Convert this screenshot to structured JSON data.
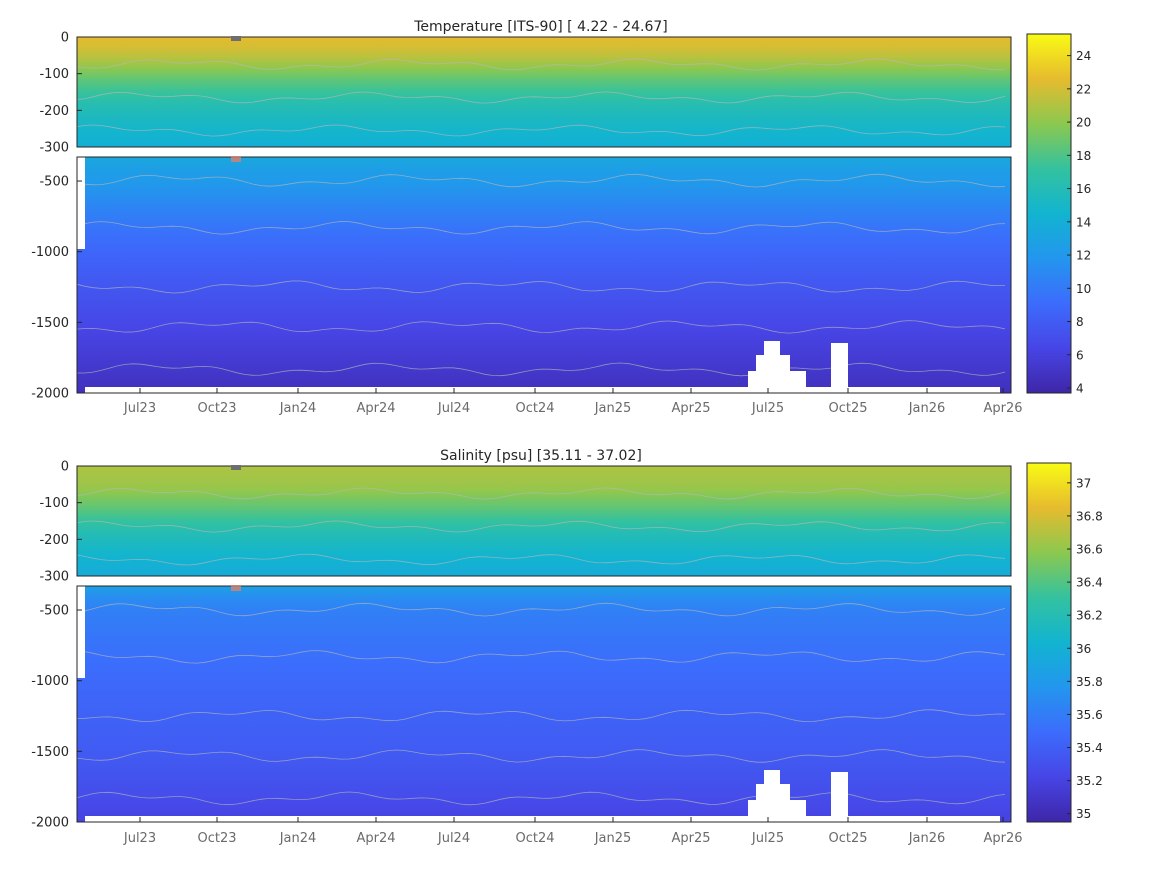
{
  "chart_data": [
    {
      "type": "heatmap",
      "title": "Temperature [ITS-90]   [ 4.22 - 24.67]",
      "x_ticks": [
        "Jul23",
        "Oct23",
        "Jan24",
        "Apr24",
        "Jul24",
        "Oct24",
        "Jan25",
        "Apr25",
        "Jul25",
        "Oct25",
        "Jan26",
        "Apr26"
      ],
      "y_ticks_upper": [
        "0",
        "-100",
        "-200",
        "-300"
      ],
      "y_ticks_lower": [
        "-500",
        "-1000",
        "-1500",
        "-2000"
      ],
      "ylim_upper": [
        -300,
        0
      ],
      "ylim_lower": [
        -2000,
        -330
      ],
      "colorbar_ticks": [
        "24",
        "22",
        "20",
        "18",
        "16",
        "14",
        "12",
        "10",
        "8",
        "6",
        "4"
      ],
      "colorbar_range": [
        3.7,
        25.3
      ],
      "depth_profile": [
        {
          "depth": 0,
          "value": 22.6
        },
        {
          "depth": -40,
          "value": 21.8
        },
        {
          "depth": -80,
          "value": 20.2
        },
        {
          "depth": -120,
          "value": 18.4
        },
        {
          "depth": -180,
          "value": 16.3
        },
        {
          "depth": -240,
          "value": 15.0
        },
        {
          "depth": -300,
          "value": 14.0
        },
        {
          "depth": -360,
          "value": 12.8
        },
        {
          "depth": -500,
          "value": 12.2
        },
        {
          "depth": -700,
          "value": 10.6
        },
        {
          "depth": -900,
          "value": 9.2
        },
        {
          "depth": -1100,
          "value": 8.2
        },
        {
          "depth": -1300,
          "value": 7.4
        },
        {
          "depth": -1500,
          "value": 6.6
        },
        {
          "depth": -1700,
          "value": 5.8
        },
        {
          "depth": -1900,
          "value": 5.0
        },
        {
          "depth": -2000,
          "value": 4.6
        }
      ]
    },
    {
      "type": "heatmap",
      "title": "Salinity [psu]   [35.11 - 37.02]",
      "x_ticks": [
        "Jul23",
        "Oct23",
        "Jan24",
        "Apr24",
        "Jul24",
        "Oct24",
        "Jan25",
        "Apr25",
        "Jul25",
        "Oct25",
        "Jan26",
        "Apr26"
      ],
      "y_ticks_upper": [
        "0",
        "-100",
        "-200",
        "-300"
      ],
      "y_ticks_lower": [
        "-500",
        "-1000",
        "-1500",
        "-2000"
      ],
      "ylim_upper": [
        -300,
        0
      ],
      "ylim_lower": [
        -2000,
        -330
      ],
      "colorbar_ticks": [
        "37",
        "36.8",
        "36.6",
        "36.4",
        "36.2",
        "36",
        "35.8",
        "35.6",
        "35.4",
        "35.2",
        "35"
      ],
      "colorbar_range": [
        34.95,
        37.12
      ],
      "depth_profile": [
        {
          "depth": 0,
          "value": 36.68
        },
        {
          "depth": -60,
          "value": 36.62
        },
        {
          "depth": -120,
          "value": 36.42
        },
        {
          "depth": -180,
          "value": 36.2
        },
        {
          "depth": -240,
          "value": 36.05
        },
        {
          "depth": -300,
          "value": 35.95
        },
        {
          "depth": -360,
          "value": 35.75
        },
        {
          "depth": -500,
          "value": 35.62
        },
        {
          "depth": -800,
          "value": 35.52
        },
        {
          "depth": -1100,
          "value": 35.45
        },
        {
          "depth": -1500,
          "value": 35.38
        },
        {
          "depth": -1800,
          "value": 35.28
        },
        {
          "depth": -2000,
          "value": 35.2
        }
      ]
    }
  ]
}
